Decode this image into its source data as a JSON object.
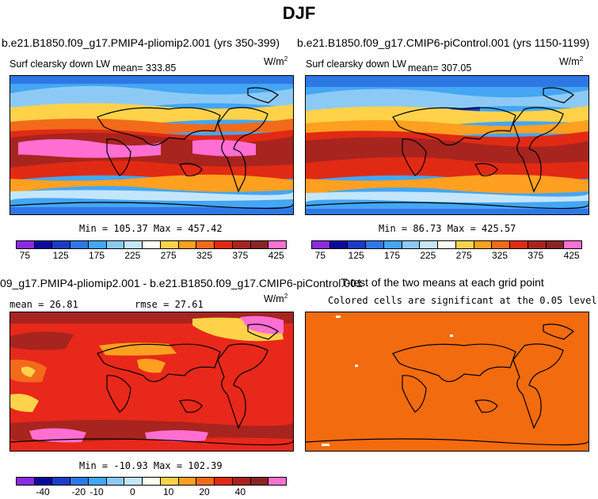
{
  "title": "DJF",
  "panels": {
    "p1": {
      "case": "b.e21.B1850.f09_g17.PMIP4-pliomip2.001 (yrs 350-399)",
      "variable": "Surf clearsky down LW",
      "mean": "mean= 333.85",
      "units": "W/m",
      "units_exp": "2",
      "stats": "Min = 105.37 Max = 457.42"
    },
    "p2": {
      "case": "b.e21.B1850.f09_g17.CMIP6-piControl.001 (yrs 1150-1199)",
      "variable": "Surf clearsky down LW",
      "mean": "mean= 307.05",
      "units": "W/m",
      "units_exp": "2",
      "stats": "Min = 86.73 Max = 425.57"
    },
    "p3": {
      "case": "09_g17.PMIP4-pliomip2.001 - b.e21.B1850.f09_g17.CMIP6-piControl.001",
      "mean": "mean = 26.81",
      "rmse": "rmse = 27.61",
      "units": "W/m",
      "units_exp": "2",
      "stats": "Min = -10.93 Max = 102.39"
    },
    "p4": {
      "title": "T-test of the two means at each grid point",
      "subtitle": "Colored cells are significant at the 0.05 level"
    }
  },
  "colorbar_abs": {
    "colors": [
      "#8a2be2",
      "#0a0a9e",
      "#1a3cc8",
      "#2e78e6",
      "#44a6f4",
      "#8ccaf5",
      "#c4e6fa",
      "#fffdf0",
      "#ffd24a",
      "#ffa020",
      "#f36a1a",
      "#e12a14",
      "#a8241e",
      "#8a2424",
      "#ff6fd2"
    ],
    "ticks": [
      "75",
      "125",
      "175",
      "225",
      "275",
      "325",
      "375",
      "425"
    ]
  },
  "colorbar_diff": {
    "colors": [
      "#8a2be2",
      "#0a0a9e",
      "#1a3cc8",
      "#2e78e6",
      "#44a6f4",
      "#8ccaf5",
      "#c4e6fa",
      "#fffdf0",
      "#ffd24a",
      "#ffa020",
      "#f36a1a",
      "#e12a14",
      "#a8241e",
      "#8a2424",
      "#ff6fd2"
    ],
    "ticks": [
      "-40",
      "-20",
      "-10",
      "0",
      "10",
      "20",
      "40"
    ]
  },
  "colors": {
    "ttest_fill": "#f26b0f",
    "diff_base": "#e8281a"
  }
}
